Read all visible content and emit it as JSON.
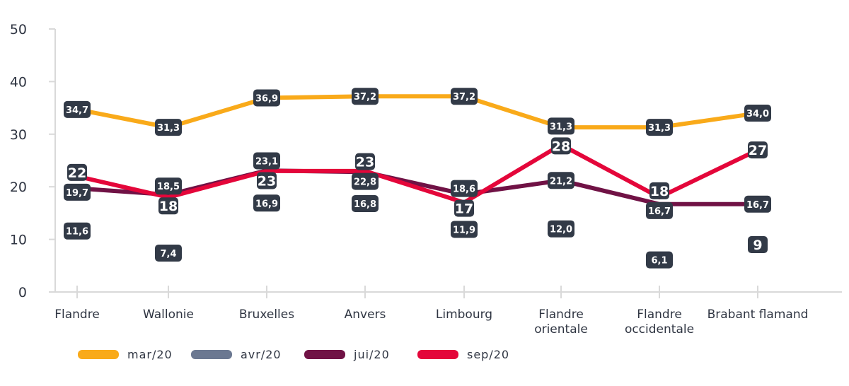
{
  "chart_data": {
    "type": "line",
    "categories": [
      "Flandre",
      "Wallonie",
      "Bruxelles",
      "Anvers",
      "Limbourg",
      "Flandre orientale",
      "Flandre occidentale",
      "Brabant flamand"
    ],
    "ylim": [
      0,
      50
    ],
    "yticks": [
      "0",
      "10",
      "20",
      "30",
      "40",
      "50"
    ],
    "grid": false,
    "legend": "bottom",
    "series": [
      {
        "name": "mar/20",
        "color": "#f9aa1a",
        "show_line": true,
        "values": [
          34.7,
          31.3,
          36.9,
          37.2,
          37.2,
          31.3,
          31.3,
          34.0
        ],
        "labels": [
          "34,7",
          "31,3",
          "36,9",
          "37,2",
          "37,2",
          "31,3",
          "31,3",
          "34,0"
        ]
      },
      {
        "name": "avr/20",
        "color": "#6b7891",
        "show_line": false,
        "values": [
          11.6,
          7.4,
          16.9,
          16.8,
          11.9,
          12.0,
          6.1,
          9
        ],
        "labels": [
          "11,6",
          "7,4",
          "16,9",
          "16,8",
          "11,9",
          "12,0",
          "6,1",
          "9"
        ]
      },
      {
        "name": "jui/20",
        "color": "#701245",
        "show_line": true,
        "values": [
          19.7,
          18.5,
          23.1,
          22.8,
          18.6,
          21.2,
          16.7,
          16.7
        ],
        "labels": [
          "19,7",
          "18,5",
          "23,1",
          "22,8",
          "18,6",
          "21,2",
          "16,7",
          "16,7"
        ]
      },
      {
        "name": "sep/20",
        "color": "#e4063a",
        "show_line": true,
        "values": [
          22,
          18,
          23,
          23,
          17,
          28,
          18,
          27
        ],
        "labels": [
          "22",
          "18",
          "23",
          "23",
          "17",
          "28",
          "18",
          "27"
        ]
      }
    ]
  }
}
